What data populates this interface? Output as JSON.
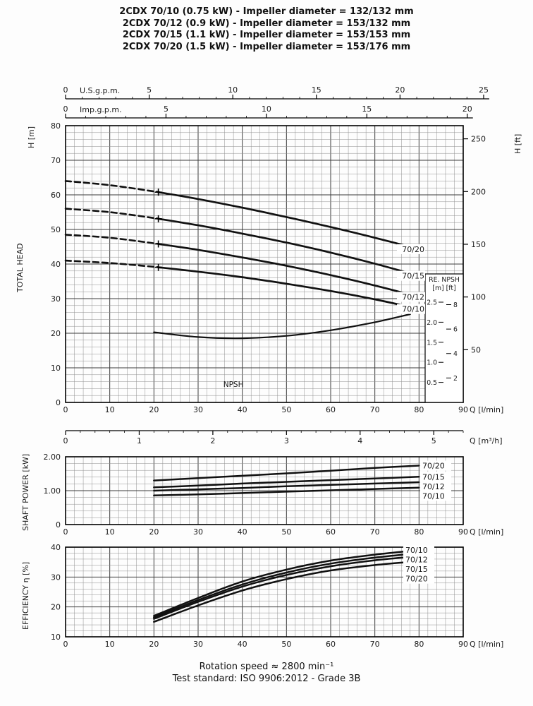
{
  "title_lines": [
    "2CDX 70/10 (0.75 kW) - Impeller diameter = 132/132 mm",
    "2CDX 70/12 (0.9 kW) - Impeller diameter = 153/132 mm",
    "2CDX 70/15 (1.1 kW) - Impeller diameter = 153/153 mm",
    "2CDX 70/20 (1.5 kW) - Impeller diameter = 153/176 mm"
  ],
  "footer": {
    "rotation_speed": "Rotation speed ≈ 2800 min⁻¹",
    "test_standard": "Test standard: ISO 9906:2012 - Grade 3B"
  },
  "colors": {
    "text": "#1a1a1a",
    "curve": "#111111",
    "grid_minor": "#8f8f8f",
    "grid_major": "#3c3c3c",
    "axis": "#000000",
    "background": "#fdfdfd"
  },
  "chart_data": [
    {
      "id": "total-head",
      "type": "line",
      "title": "TOTAL HEAD",
      "x_axis": {
        "label": "Q [l/min]",
        "min": 0,
        "max": 90,
        "minor_step": 2,
        "major_ticks": [
          0,
          10,
          20,
          30,
          40,
          50,
          60,
          70,
          80,
          90
        ]
      },
      "y_axis": {
        "label": "H [m]",
        "min": 0,
        "max": 80,
        "minor_step": 2,
        "major_ticks": [
          0,
          10,
          20,
          30,
          40,
          50,
          60,
          70,
          80
        ]
      },
      "right_axis": {
        "label": "H [ft]",
        "unit_m": 0.3048,
        "ticks": [
          50,
          100,
          150,
          200,
          250
        ]
      },
      "top_axes": [
        {
          "label": "U.S.g.p.m.",
          "lpm_per_unit": 3.785,
          "ticks": [
            0,
            5,
            10,
            15,
            20,
            25
          ]
        },
        {
          "label": "Imp.g.p.m.",
          "lpm_per_unit": 4.546,
          "ticks": [
            0,
            5,
            10,
            15,
            20
          ]
        }
      ],
      "bottom_axis2": {
        "label": "Q [m³/h]",
        "lpm_per_unit": 16.667,
        "minor_step": 0.2,
        "ticks": [
          0,
          1,
          2,
          3,
          4,
          5
        ]
      },
      "series": [
        {
          "name": "70/20",
          "dash_until": 21,
          "marker_at": 21,
          "points": [
            [
              0,
              64
            ],
            [
              10,
              62.8
            ],
            [
              20,
              61
            ],
            [
              30,
              58.8
            ],
            [
              40,
              56.3
            ],
            [
              50,
              53.6
            ],
            [
              60,
              50.7
            ],
            [
              70,
              47.6
            ],
            [
              80,
              44.3
            ]
          ]
        },
        {
          "name": "70/15",
          "dash_until": 21,
          "marker_at": 21,
          "points": [
            [
              0,
              56
            ],
            [
              10,
              55
            ],
            [
              20,
              53.3
            ],
            [
              30,
              51.2
            ],
            [
              40,
              48.8
            ],
            [
              50,
              46.2
            ],
            [
              60,
              43.3
            ],
            [
              70,
              40.1
            ],
            [
              80,
              36.6
            ]
          ]
        },
        {
          "name": "70/12",
          "dash_until": 21,
          "marker_at": 21,
          "points": [
            [
              0,
              48.5
            ],
            [
              10,
              47.6
            ],
            [
              20,
              46
            ],
            [
              30,
              44.1
            ],
            [
              40,
              41.9
            ],
            [
              50,
              39.5
            ],
            [
              60,
              36.8
            ],
            [
              70,
              33.8
            ],
            [
              80,
              30.5
            ]
          ]
        },
        {
          "name": "70/10",
          "dash_until": 21,
          "marker_at": 21,
          "points": [
            [
              0,
              41
            ],
            [
              10,
              40.3
            ],
            [
              20,
              39.2
            ],
            [
              30,
              37.8
            ],
            [
              40,
              36.2
            ],
            [
              50,
              34.3
            ],
            [
              60,
              32.2
            ],
            [
              70,
              29.8
            ],
            [
              80,
              27
            ]
          ]
        }
      ],
      "npsh": {
        "label": "NPSH",
        "box_title": "RE. NPSH",
        "box_units": "[m] [ft]",
        "m_ticks": [
          0.5,
          1,
          1.5,
          2,
          2.5
        ],
        "ft_ticks": [
          2,
          4,
          6,
          8
        ],
        "label_x": 38,
        "points": [
          [
            20,
            1.75
          ],
          [
            30,
            1.63
          ],
          [
            40,
            1.6
          ],
          [
            50,
            1.66
          ],
          [
            60,
            1.8
          ],
          [
            70,
            2
          ],
          [
            78,
            2.2
          ]
        ]
      }
    },
    {
      "id": "shaft-power",
      "type": "line",
      "title": "SHAFT POWER  [kW]",
      "x_axis": {
        "label": "Q [l/min]",
        "min": 0,
        "max": 90,
        "minor_step": 2,
        "major_ticks": [
          0,
          10,
          20,
          30,
          40,
          50,
          60,
          70,
          80,
          90
        ]
      },
      "y_axis": {
        "label": "",
        "min": 0,
        "max": 2,
        "minor_step": 0.2,
        "major_ticks": [
          0,
          1,
          2
        ],
        "tick_labels": [
          "0",
          "1.00",
          "2.00"
        ]
      },
      "series": [
        {
          "name": "70/20",
          "points": [
            [
              20,
              1.3
            ],
            [
              30,
              1.37
            ],
            [
              40,
              1.44
            ],
            [
              50,
              1.51
            ],
            [
              60,
              1.59
            ],
            [
              70,
              1.67
            ],
            [
              80,
              1.74
            ]
          ]
        },
        {
          "name": "70/15",
          "points": [
            [
              20,
              1.1
            ],
            [
              30,
              1.15
            ],
            [
              40,
              1.21
            ],
            [
              50,
              1.26
            ],
            [
              60,
              1.31
            ],
            [
              70,
              1.36
            ],
            [
              80,
              1.41
            ]
          ]
        },
        {
          "name": "70/12",
          "points": [
            [
              20,
              1
            ],
            [
              30,
              1.04
            ],
            [
              40,
              1.08
            ],
            [
              50,
              1.13
            ],
            [
              60,
              1.17
            ],
            [
              70,
              1.21
            ],
            [
              80,
              1.25
            ]
          ]
        },
        {
          "name": "70/10",
          "points": [
            [
              20,
              0.86
            ],
            [
              30,
              0.89
            ],
            [
              40,
              0.93
            ],
            [
              50,
              0.97
            ],
            [
              60,
              1.01
            ],
            [
              70,
              1.05
            ],
            [
              80,
              1.09
            ]
          ]
        }
      ]
    },
    {
      "id": "efficiency",
      "type": "line",
      "title": "EFFICIENCY  η  [%]",
      "x_axis": {
        "label": "Q [l/min]",
        "min": 0,
        "max": 90,
        "minor_step": 2,
        "major_ticks": [
          0,
          10,
          20,
          30,
          40,
          50,
          60,
          70,
          80,
          90
        ]
      },
      "y_axis": {
        "label": "",
        "min": 10,
        "max": 40,
        "minor_step": 2,
        "major_ticks": [
          10,
          20,
          30,
          40
        ]
      },
      "series": [
        {
          "name": "70/10",
          "points": [
            [
              20,
              17
            ],
            [
              30,
              23
            ],
            [
              40,
              28.5
            ],
            [
              50,
              32.5
            ],
            [
              60,
              35.5
            ],
            [
              70,
              37.5
            ],
            [
              80,
              39
            ]
          ]
        },
        {
          "name": "70/12",
          "points": [
            [
              20,
              16.5
            ],
            [
              30,
              22.3
            ],
            [
              40,
              27.5
            ],
            [
              50,
              31.5
            ],
            [
              60,
              34.5
            ],
            [
              70,
              36.5
            ],
            [
              80,
              38
            ]
          ]
        },
        {
          "name": "70/15",
          "points": [
            [
              20,
              16
            ],
            [
              30,
              21.7
            ],
            [
              40,
              26.8
            ],
            [
              50,
              30.7
            ],
            [
              60,
              33.6
            ],
            [
              70,
              35.6
            ],
            [
              80,
              37
            ]
          ]
        },
        {
          "name": "70/20",
          "points": [
            [
              20,
              15
            ],
            [
              30,
              20.5
            ],
            [
              40,
              25.5
            ],
            [
              50,
              29.3
            ],
            [
              60,
              32.2
            ],
            [
              70,
              34
            ],
            [
              80,
              35.3
            ]
          ]
        }
      ]
    }
  ]
}
